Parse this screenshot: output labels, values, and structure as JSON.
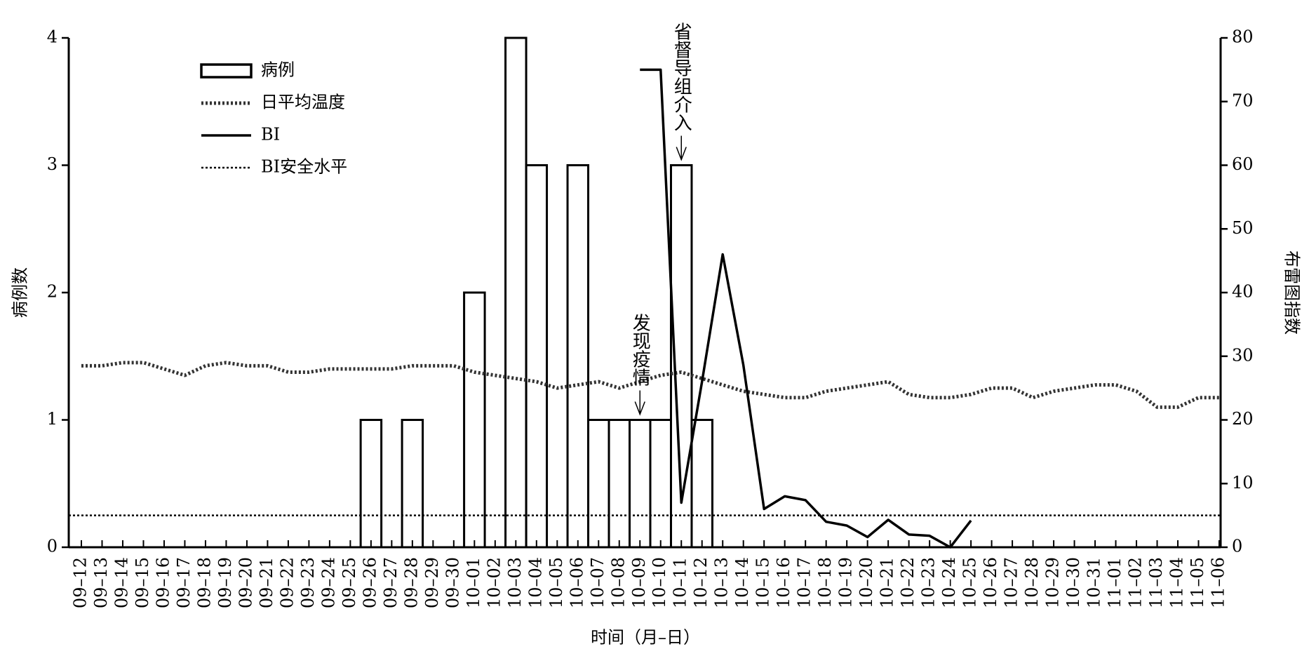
{
  "chart_data": {
    "type": "bar_line",
    "categories": [
      "09–12",
      "09–13",
      "09–14",
      "09–15",
      "09–16",
      "09–17",
      "09–18",
      "09–19",
      "09–20",
      "09–21",
      "09–22",
      "09–23",
      "09–24",
      "09–25",
      "09–26",
      "09–27",
      "09–28",
      "09–29",
      "09–30",
      "10–01",
      "10–02",
      "10–03",
      "10–04",
      "10–05",
      "10–06",
      "10–07",
      "10–08",
      "10–09",
      "10–10",
      "10–11",
      "10–12",
      "10–13",
      "10–14",
      "10–15",
      "10–16",
      "10–17",
      "10–18",
      "10–19",
      "10–20",
      "10–21",
      "10–22",
      "10–23",
      "10–24",
      "10–25",
      "10–26",
      "10–27",
      "10–28",
      "10–29",
      "10–30",
      "10–31",
      "11–01",
      "11–02",
      "11–03",
      "11–04",
      "11–05",
      "11–06"
    ],
    "series": [
      {
        "name": "病例",
        "kind": "bar",
        "axis": "y",
        "color": "#000000",
        "values": [
          0,
          0,
          0,
          0,
          0,
          0,
          0,
          0,
          0,
          0,
          0,
          0,
          0,
          0,
          1,
          0,
          1,
          0,
          0,
          2,
          0,
          4,
          3,
          0,
          3,
          1,
          1,
          1,
          1,
          3,
          1,
          0,
          0,
          0,
          0,
          0,
          0,
          0,
          0,
          0,
          0,
          0,
          0,
          0,
          0,
          0,
          0,
          0,
          0,
          0,
          0,
          0,
          0,
          0,
          0,
          0
        ]
      },
      {
        "name": "日平均温度",
        "kind": "dotted",
        "axis": "y2",
        "color": "#333333",
        "values": [
          28.5,
          28.5,
          29,
          29,
          28,
          27,
          28.5,
          29,
          28.5,
          28.5,
          27.5,
          27.5,
          28,
          28,
          28,
          28,
          28.5,
          28.5,
          28.5,
          27.5,
          27,
          26.5,
          26,
          25,
          25.5,
          26,
          25,
          26,
          27,
          27.5,
          26.5,
          25.5,
          24.5,
          24,
          23.5,
          23.5,
          24.5,
          25,
          25.5,
          26,
          24,
          23.5,
          23.5,
          24,
          25,
          25,
          23.5,
          24.5,
          25,
          25.5,
          25.5,
          24.5,
          22,
          22,
          23.5,
          23.5
        ]
      },
      {
        "name": "BI",
        "kind": "solid",
        "axis": "y2",
        "color": "#000000",
        "values": [
          null,
          null,
          null,
          null,
          null,
          null,
          null,
          null,
          null,
          null,
          null,
          null,
          null,
          null,
          null,
          null,
          null,
          null,
          null,
          null,
          null,
          null,
          null,
          null,
          null,
          null,
          null,
          75,
          75,
          7,
          26,
          46,
          28.6,
          6,
          8,
          7.4,
          4,
          3.4,
          1.6,
          4.3,
          2,
          1.8,
          0,
          4.2,
          null,
          null,
          null,
          null,
          null,
          null,
          null,
          null,
          null,
          null,
          null,
          null
        ]
      },
      {
        "name": "BI安全水平",
        "kind": "reference",
        "axis": "y2",
        "color": "#000000",
        "value": 5
      }
    ],
    "ylim": [
      0,
      4
    ],
    "yticks": [
      0,
      1,
      2,
      3,
      4
    ],
    "y2lim": [
      0,
      80
    ],
    "y2ticks": [
      0,
      10,
      20,
      30,
      40,
      50,
      60,
      70,
      80
    ],
    "ylabel": "病例数",
    "y2label": "布雷图指数",
    "xlabel": "时间（月–日）",
    "annotations": [
      {
        "text": "发现疫情",
        "category": "10–09",
        "y": 1
      },
      {
        "text": "省督导组介入",
        "category": "10–11",
        "y": 3
      }
    ],
    "legend": "upper left"
  }
}
